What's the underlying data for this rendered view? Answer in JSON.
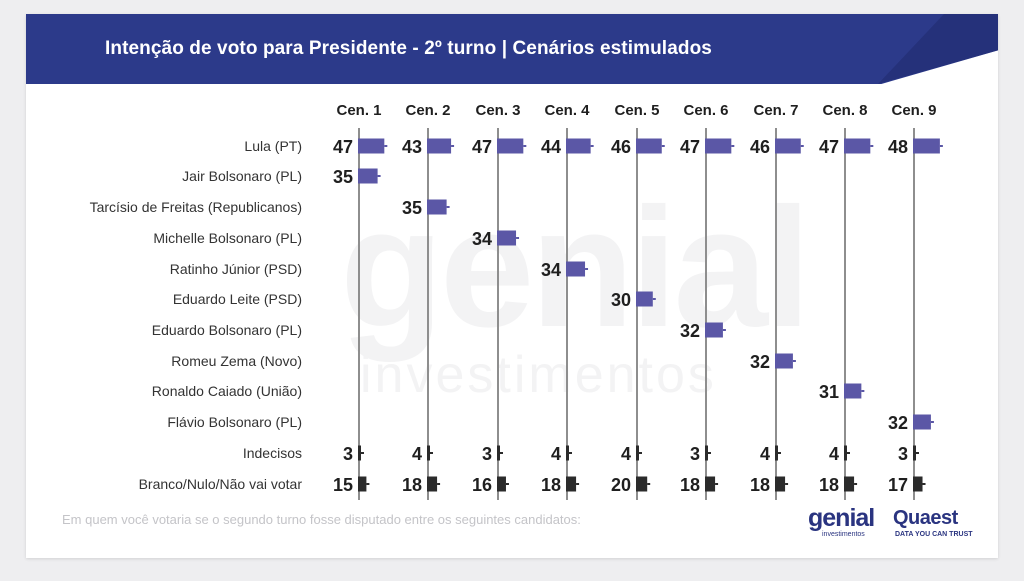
{
  "header": {
    "title": "Intenção de voto para Presidente - 2º turno | Cenários estimulados"
  },
  "watermark": {
    "brand": "genial",
    "sub": "investimentos"
  },
  "colors": {
    "header_bg": "#2c3a8a",
    "bar_candidate": "#5b57a6",
    "bar_other": "#2b2b2b",
    "axis_line": "#8e8e8e",
    "text": "#333333",
    "value_text": "#1f1f1f"
  },
  "chart_data": {
    "type": "bar",
    "orientation": "horizontal",
    "scenarios": [
      "Cen. 1",
      "Cen. 2",
      "Cen. 3",
      "Cen. 4",
      "Cen. 5",
      "Cen. 6",
      "Cen. 7",
      "Cen. 8",
      "Cen. 9"
    ],
    "categories": [
      "Lula (PT)",
      "Jair Bolsonaro (PL)",
      "Tarcísio de Freitas (Republicanos)",
      "Michelle Bolsonaro (PL)",
      "Ratinho Júnior (PSD)",
      "Eduardo Leite (PSD)",
      "Eduardo Bolsonaro (PL)",
      "Romeu Zema (Novo)",
      "Ronaldo Caiado (União)",
      "Flávio Bolsonaro (PL)",
      "Indecisos",
      "Branco/Nulo/Não vai votar"
    ],
    "values": [
      [
        47,
        43,
        47,
        44,
        46,
        47,
        46,
        47,
        48
      ],
      [
        35,
        null,
        null,
        null,
        null,
        null,
        null,
        null,
        null
      ],
      [
        null,
        35,
        null,
        null,
        null,
        null,
        null,
        null,
        null
      ],
      [
        null,
        null,
        34,
        null,
        null,
        null,
        null,
        null,
        null
      ],
      [
        null,
        null,
        null,
        34,
        null,
        null,
        null,
        null,
        null
      ],
      [
        null,
        null,
        null,
        null,
        30,
        null,
        null,
        null,
        null
      ],
      [
        null,
        null,
        null,
        null,
        null,
        32,
        null,
        null,
        null
      ],
      [
        null,
        null,
        null,
        null,
        null,
        null,
        32,
        null,
        null
      ],
      [
        null,
        null,
        null,
        null,
        null,
        null,
        null,
        31,
        null
      ],
      [
        null,
        null,
        null,
        null,
        null,
        null,
        null,
        null,
        32
      ],
      [
        3,
        4,
        3,
        4,
        4,
        3,
        4,
        4,
        3
      ],
      [
        15,
        18,
        16,
        18,
        20,
        18,
        18,
        18,
        17
      ]
    ],
    "grid": false,
    "legend": "none"
  },
  "footnote": "Em quem você votaria se o segundo turno fosse disputado entre os seguintes candidatos:",
  "logos": {
    "genial_word": "genial",
    "genial_sub": "investimentos",
    "quaest_word": "Quaest",
    "quaest_tagline": "DATA YOU CAN TRUST"
  }
}
